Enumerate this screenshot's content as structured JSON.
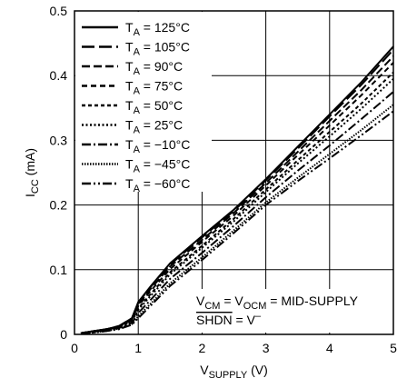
{
  "chart_data": {
    "type": "line",
    "x_label": "VSUPPLY (V)",
    "y_label": "ICC (mA)",
    "annotations": [
      "VCM = VOCM = MID-SUPPLY",
      "SHDN = V–"
    ],
    "x": [
      0.1,
      0.3,
      0.5,
      0.7,
      0.9,
      1,
      1.2,
      1.5,
      2,
      2.5,
      3,
      3.5,
      4,
      4.5,
      5
    ],
    "series": [
      {
        "name": "TA = 125°C",
        "color": "#000000",
        "values": [
          0.002,
          0.005,
          0.008,
          0.013,
          0.025,
          0.05,
          0.075,
          0.11,
          0.152,
          0.193,
          0.24,
          0.29,
          0.34,
          0.39,
          0.445
        ]
      },
      {
        "name": "TA = 105°C",
        "color": "#000000",
        "values": [
          0.002,
          0.005,
          0.008,
          0.013,
          0.025,
          0.049,
          0.074,
          0.108,
          0.15,
          0.191,
          0.238,
          0.287,
          0.337,
          0.386,
          0.44
        ]
      },
      {
        "name": "TA = 90°C",
        "color": "#000000",
        "values": [
          0.002,
          0.005,
          0.008,
          0.012,
          0.024,
          0.046,
          0.071,
          0.105,
          0.146,
          0.188,
          0.234,
          0.282,
          0.33,
          0.378,
          0.43
        ]
      },
      {
        "name": "TA = 75°C",
        "color": "#000000",
        "values": [
          0.002,
          0.005,
          0.007,
          0.012,
          0.023,
          0.044,
          0.068,
          0.101,
          0.143,
          0.184,
          0.23,
          0.277,
          0.323,
          0.37,
          0.42
        ]
      },
      {
        "name": "TA = 50°C",
        "color": "#000000",
        "values": [
          0.002,
          0.004,
          0.007,
          0.011,
          0.021,
          0.04,
          0.063,
          0.096,
          0.137,
          0.179,
          0.224,
          0.269,
          0.313,
          0.357,
          0.405
        ]
      },
      {
        "name": "TA = 25°C",
        "color": "#000000",
        "values": [
          0.002,
          0.004,
          0.007,
          0.011,
          0.02,
          0.038,
          0.06,
          0.093,
          0.134,
          0.175,
          0.22,
          0.264,
          0.306,
          0.349,
          0.395
        ]
      },
      {
        "name": "TA = −10°C",
        "color": "#000000",
        "values": [
          0.001,
          0.004,
          0.006,
          0.01,
          0.018,
          0.033,
          0.054,
          0.086,
          0.126,
          0.168,
          0.212,
          0.253,
          0.292,
          0.333,
          0.375
        ]
      },
      {
        "name": "TA = −45°C",
        "color": "#000000",
        "values": [
          0.001,
          0.003,
          0.005,
          0.009,
          0.016,
          0.028,
          0.048,
          0.079,
          0.119,
          0.161,
          0.204,
          0.242,
          0.279,
          0.316,
          0.355
        ]
      },
      {
        "name": "TA = −60°C",
        "color": "#000000",
        "values": [
          0.001,
          0.003,
          0.005,
          0.008,
          0.015,
          0.025,
          0.045,
          0.075,
          0.115,
          0.157,
          0.2,
          0.237,
          0.272,
          0.308,
          0.345
        ]
      }
    ],
    "xlim": [
      0,
      5
    ],
    "xticks": [
      0,
      1,
      2,
      3,
      4,
      5
    ],
    "ylim": [
      0,
      0.5
    ],
    "yticks": [
      0,
      0.1,
      0.2,
      0.3,
      0.4,
      0.5
    ],
    "grid": true,
    "legend": "upper left"
  }
}
